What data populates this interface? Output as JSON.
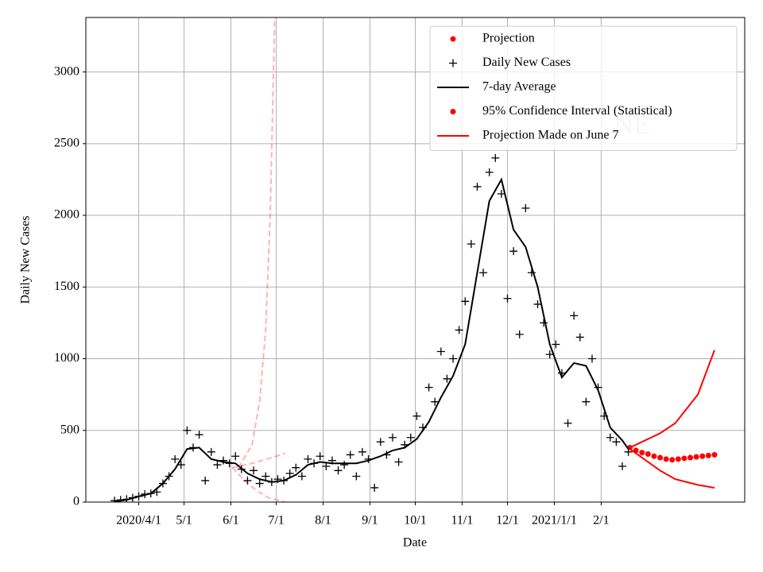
{
  "chart_data": {
    "type": "line",
    "xlabel": "Date",
    "ylabel": "Daily New Cases",
    "annotation": "NE",
    "xlim": [
      -35,
      401
    ],
    "ylim": [
      0,
      3380
    ],
    "xticks": [
      {
        "value": 0,
        "label": "2020/4/1"
      },
      {
        "value": 30,
        "label": "5/1"
      },
      {
        "value": 61,
        "label": "6/1"
      },
      {
        "value": 91,
        "label": "7/1"
      },
      {
        "value": 122,
        "label": "8/1"
      },
      {
        "value": 153,
        "label": "9/1"
      },
      {
        "value": 183,
        "label": "10/1"
      },
      {
        "value": 214,
        "label": "11/1"
      },
      {
        "value": 244,
        "label": "12/1"
      },
      {
        "value": 275,
        "label": "2021/1/1"
      },
      {
        "value": 306,
        "label": "2/1"
      }
    ],
    "yticks": [
      0,
      500,
      1000,
      1500,
      2000,
      2500,
      3000
    ],
    "grid": true,
    "legend": "upper right",
    "series": [
      {
        "name": "Projection",
        "color": "#ff0000",
        "style": "markers",
        "marker": "dot",
        "x": [
          325,
          329,
          333,
          337,
          341,
          345,
          349,
          353,
          357,
          361,
          365,
          369,
          373,
          377,
          381
        ],
        "values": [
          380,
          360,
          345,
          335,
          320,
          310,
          300,
          295,
          300,
          305,
          310,
          315,
          320,
          325,
          330
        ]
      },
      {
        "name": "Daily New Cases",
        "color": "#000000",
        "style": "markers",
        "marker": "plus",
        "x": [
          -16,
          -12,
          -8,
          -4,
          0,
          4,
          8,
          12,
          16,
          20,
          24,
          28,
          32,
          36,
          40,
          44,
          48,
          52,
          56,
          60,
          64,
          68,
          72,
          76,
          80,
          84,
          88,
          92,
          96,
          100,
          104,
          108,
          112,
          116,
          120,
          124,
          128,
          132,
          136,
          140,
          144,
          148,
          152,
          156,
          160,
          164,
          168,
          172,
          176,
          180,
          184,
          188,
          192,
          196,
          200,
          204,
          208,
          212,
          216,
          220,
          224,
          228,
          232,
          236,
          240,
          244,
          248,
          252,
          256,
          260,
          264,
          268,
          272,
          276,
          280,
          284,
          288,
          292,
          296,
          300,
          304,
          308,
          312,
          316,
          320,
          324
        ],
        "values": [
          10,
          15,
          20,
          30,
          40,
          55,
          60,
          70,
          130,
          180,
          300,
          260,
          500,
          380,
          470,
          150,
          350,
          260,
          290,
          270,
          320,
          230,
          150,
          220,
          130,
          180,
          140,
          160,
          150,
          200,
          240,
          180,
          300,
          270,
          320,
          250,
          290,
          220,
          260,
          330,
          180,
          350,
          300,
          100,
          420,
          330,
          450,
          280,
          400,
          450,
          600,
          520,
          800,
          700,
          1050,
          860,
          1000,
          1200,
          1400,
          1800,
          2200,
          1600,
          2300,
          2400,
          2150,
          1420,
          1750,
          1170,
          2050,
          1600,
          1380,
          1250,
          1030,
          1100,
          900,
          550,
          1300,
          1150,
          700,
          1000,
          800,
          600,
          450,
          420,
          250,
          350
        ]
      },
      {
        "name": "7-day Average",
        "color": "#000000",
        "style": "line",
        "x": [
          -16,
          -8,
          0,
          8,
          16,
          24,
          32,
          40,
          48,
          56,
          64,
          72,
          80,
          88,
          96,
          104,
          112,
          120,
          128,
          136,
          144,
          152,
          160,
          168,
          176,
          184,
          192,
          200,
          208,
          216,
          224,
          232,
          240,
          248,
          256,
          264,
          272,
          280,
          288,
          296,
          304,
          312,
          320,
          324
        ],
        "values": [
          5,
          15,
          40,
          60,
          130,
          230,
          370,
          380,
          300,
          280,
          270,
          200,
          160,
          140,
          150,
          190,
          260,
          280,
          270,
          270,
          270,
          290,
          320,
          360,
          380,
          440,
          560,
          730,
          880,
          1100,
          1600,
          2100,
          2250,
          1900,
          1780,
          1500,
          1100,
          870,
          970,
          950,
          780,
          520,
          430,
          370
        ]
      },
      {
        "name": "95% Confidence Interval (Statistical)",
        "color": "#ff0000",
        "style": "band-lines",
        "marker": "dot",
        "x": [
          325,
          345,
          355,
          370,
          381
        ],
        "upper": [
          380,
          480,
          550,
          750,
          1060
        ],
        "lower": [
          370,
          220,
          160,
          120,
          100
        ]
      },
      {
        "name": "Projection Made on June 7",
        "color": "#ff0000",
        "style": "dashed",
        "opacity": 0.3,
        "lines": [
          {
            "x": [
              66,
              75,
              80,
              84,
              87,
              90
            ],
            "values": [
              240,
              400,
              700,
              1200,
              2000,
              3380
            ]
          },
          {
            "x": [
              62,
              70,
              78,
              86,
              97
            ],
            "values": [
              240,
              150,
              80,
              30,
              0
            ]
          },
          {
            "x": [
              62,
              75,
              88,
              97
            ],
            "values": [
              240,
              270,
              310,
              340
            ]
          }
        ]
      }
    ]
  }
}
